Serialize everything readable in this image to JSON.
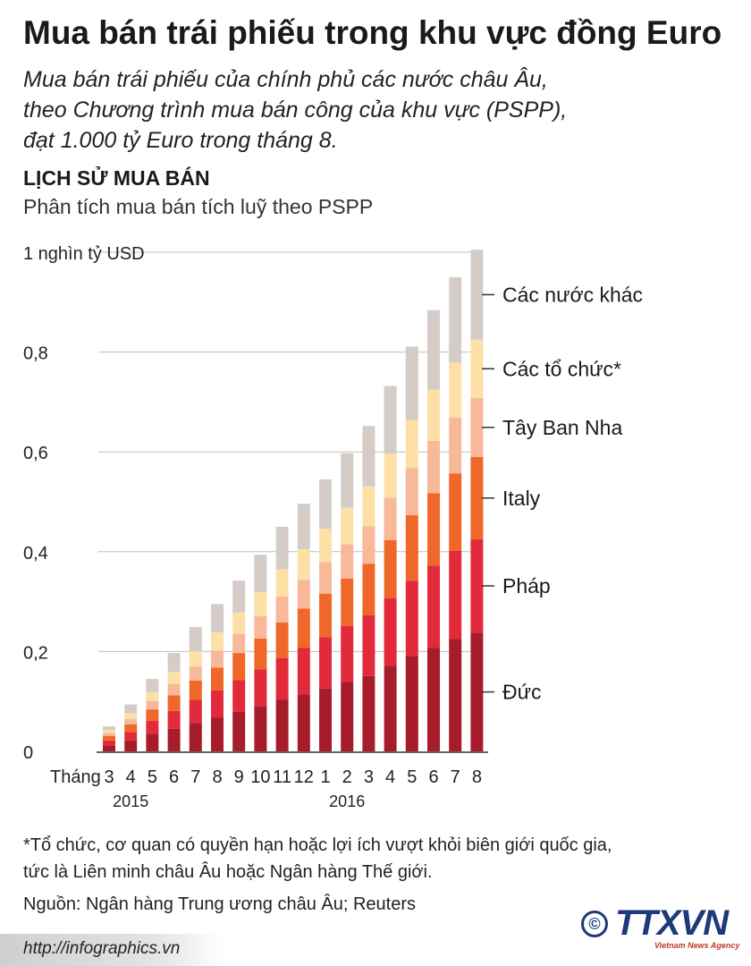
{
  "header": {
    "title": "Mua bán trái phiếu trong khu vực đồng Euro",
    "subtitle_lines": [
      "Mua bán trái phiếu của chính phủ các nước châu Âu,",
      "theo Chương trình mua bán công của khu vực (PSPP),",
      "đạt 1.000 tỷ Euro trong tháng 8."
    ]
  },
  "section": {
    "title": "LỊCH SỬ MUA BÁN",
    "subtitle": "Phân tích mua bán tích luỹ theo PSPP"
  },
  "chart_data": {
    "type": "bar",
    "stacked": true,
    "title": "LỊCH SỬ MUA BÁN",
    "subtitle": "Phân tích mua bán tích luỹ theo PSPP",
    "ylabel": "1 nghìn tỷ USD",
    "ylim": [
      0,
      1
    ],
    "yticks": [
      0,
      0.2,
      0.4,
      0.6,
      0.8,
      1
    ],
    "ytick_labels": [
      "0",
      "0,2",
      "0,4",
      "0,6",
      "0,8",
      "1 nghìn tỷ USD"
    ],
    "x_prefix": "Tháng",
    "categories": [
      "3",
      "4",
      "5",
      "6",
      "7",
      "8",
      "9",
      "10",
      "11",
      "12",
      "1",
      "2",
      "3",
      "4",
      "5",
      "6",
      "7",
      "8"
    ],
    "year_labels": [
      {
        "label": "2015",
        "at_index": 1
      },
      {
        "label": "2016",
        "at_index": 11
      }
    ],
    "grid": true,
    "legend_position": "right",
    "series": [
      {
        "name": "Đức",
        "color": "#a71c2b",
        "values": [
          0.012,
          0.022,
          0.034,
          0.045,
          0.057,
          0.068,
          0.079,
          0.091,
          0.103,
          0.114,
          0.126,
          0.139,
          0.151,
          0.171,
          0.191,
          0.207,
          0.225,
          0.238
        ]
      },
      {
        "name": "Pháp",
        "color": "#e32a3b",
        "values": [
          0.01,
          0.017,
          0.027,
          0.036,
          0.046,
          0.054,
          0.064,
          0.073,
          0.084,
          0.093,
          0.103,
          0.112,
          0.122,
          0.136,
          0.151,
          0.165,
          0.177,
          0.187
        ]
      },
      {
        "name": "Italy",
        "color": "#f0672a",
        "values": [
          0.009,
          0.015,
          0.023,
          0.031,
          0.039,
          0.046,
          0.054,
          0.062,
          0.071,
          0.079,
          0.087,
          0.095,
          0.103,
          0.116,
          0.131,
          0.145,
          0.155,
          0.165
        ]
      },
      {
        "name": "Tây Ban Nha",
        "color": "#f7b99a",
        "values": [
          0.006,
          0.011,
          0.017,
          0.023,
          0.028,
          0.034,
          0.039,
          0.045,
          0.052,
          0.058,
          0.063,
          0.069,
          0.075,
          0.085,
          0.095,
          0.105,
          0.112,
          0.118
        ]
      },
      {
        "name": "Các tổ chức*",
        "color": "#fde0a6",
        "values": [
          0.006,
          0.011,
          0.018,
          0.024,
          0.03,
          0.036,
          0.042,
          0.048,
          0.055,
          0.061,
          0.067,
          0.073,
          0.08,
          0.089,
          0.096,
          0.103,
          0.11,
          0.117
        ]
      },
      {
        "name": "Các nước khác",
        "color": "#d5ccc8",
        "values": [
          0.007,
          0.018,
          0.026,
          0.038,
          0.049,
          0.057,
          0.064,
          0.075,
          0.085,
          0.091,
          0.099,
          0.109,
          0.121,
          0.135,
          0.147,
          0.159,
          0.171,
          0.18
        ]
      }
    ]
  },
  "footnote_lines": [
    "*Tổ chức, cơ quan có quyền hạn hoặc lợi ích vượt khỏi biên giới quốc gia,",
    "tức là Liên minh châu Âu hoặc Ngân hàng Thế giới."
  ],
  "source": "Nguồn: Ngân hàng Trung ương châu Âu; Reuters",
  "footer": {
    "url": "http://infographics.vn",
    "copyright_symbol": "©",
    "brand": "TTXVN",
    "brand_sub": "Vietnam News Agency"
  },
  "colors": {
    "grid": "#bfbfbf",
    "axis": "#333333",
    "brand_blue": "#1e3a7a",
    "brand_red": "#c0392b"
  }
}
